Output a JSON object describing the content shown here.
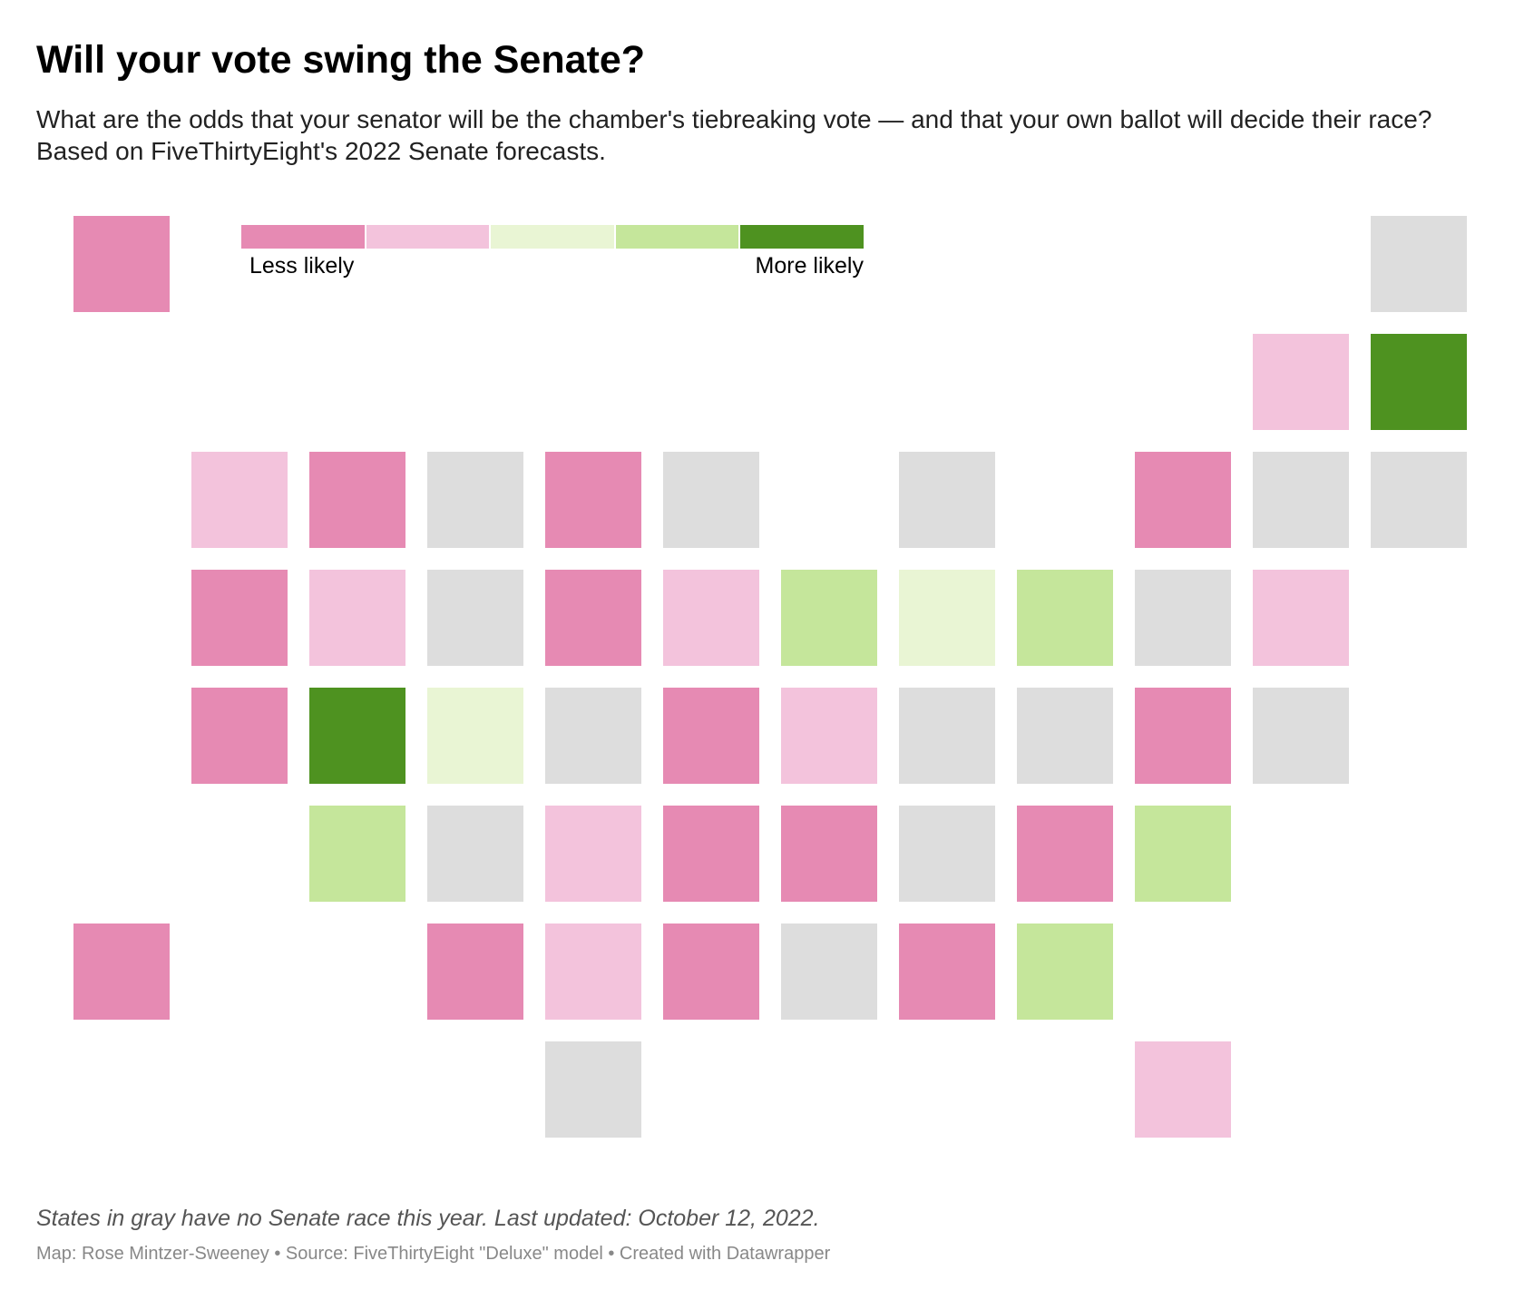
{
  "header": {
    "title": "Will your vote swing the Senate?",
    "subtitle": "What are the odds that your senator will be the chamber's tiebreaking vote — and that your own ballot will decide their race? Based on FiveThirtyEight's 2022 Senate forecasts."
  },
  "legend": {
    "left_label": "Less likely",
    "right_label": "More likely",
    "levels": [
      1,
      2,
      3,
      4,
      5
    ]
  },
  "colors": {
    "level_1": "#e68ab3",
    "level_2": "#f3c3dc",
    "level_3": "#e9f5d4",
    "level_4": "#c5e69b",
    "level_5": "#4e9220",
    "no_race": "#dddddd"
  },
  "tiles": [
    {
      "row": 0,
      "col": 0,
      "level": 1
    },
    {
      "row": 0,
      "col": 11,
      "level": 0
    },
    {
      "row": 1,
      "col": 10,
      "level": 2
    },
    {
      "row": 1,
      "col": 11,
      "level": 5
    },
    {
      "row": 2,
      "col": 1,
      "level": 2
    },
    {
      "row": 2,
      "col": 2,
      "level": 1
    },
    {
      "row": 2,
      "col": 3,
      "level": 0
    },
    {
      "row": 2,
      "col": 4,
      "level": 1
    },
    {
      "row": 2,
      "col": 5,
      "level": 0
    },
    {
      "row": 2,
      "col": 7,
      "level": 0
    },
    {
      "row": 2,
      "col": 9,
      "level": 1
    },
    {
      "row": 2,
      "col": 10,
      "level": 0
    },
    {
      "row": 2,
      "col": 11,
      "level": 0
    },
    {
      "row": 3,
      "col": 1,
      "level": 1
    },
    {
      "row": 3,
      "col": 2,
      "level": 2
    },
    {
      "row": 3,
      "col": 3,
      "level": 0
    },
    {
      "row": 3,
      "col": 4,
      "level": 1
    },
    {
      "row": 3,
      "col": 5,
      "level": 2
    },
    {
      "row": 3,
      "col": 6,
      "level": 4
    },
    {
      "row": 3,
      "col": 7,
      "level": 3
    },
    {
      "row": 3,
      "col": 8,
      "level": 4
    },
    {
      "row": 3,
      "col": 9,
      "level": 0
    },
    {
      "row": 3,
      "col": 10,
      "level": 2
    },
    {
      "row": 4,
      "col": 1,
      "level": 1
    },
    {
      "row": 4,
      "col": 2,
      "level": 5
    },
    {
      "row": 4,
      "col": 3,
      "level": 3
    },
    {
      "row": 4,
      "col": 4,
      "level": 0
    },
    {
      "row": 4,
      "col": 5,
      "level": 1
    },
    {
      "row": 4,
      "col": 6,
      "level": 2
    },
    {
      "row": 4,
      "col": 7,
      "level": 0
    },
    {
      "row": 4,
      "col": 8,
      "level": 0
    },
    {
      "row": 4,
      "col": 9,
      "level": 1
    },
    {
      "row": 4,
      "col": 10,
      "level": 0
    },
    {
      "row": 5,
      "col": 2,
      "level": 4
    },
    {
      "row": 5,
      "col": 3,
      "level": 0
    },
    {
      "row": 5,
      "col": 4,
      "level": 2
    },
    {
      "row": 5,
      "col": 5,
      "level": 1
    },
    {
      "row": 5,
      "col": 6,
      "level": 1
    },
    {
      "row": 5,
      "col": 7,
      "level": 0
    },
    {
      "row": 5,
      "col": 8,
      "level": 1
    },
    {
      "row": 5,
      "col": 9,
      "level": 4
    },
    {
      "row": 6,
      "col": 0,
      "level": 1
    },
    {
      "row": 6,
      "col": 3,
      "level": 1
    },
    {
      "row": 6,
      "col": 4,
      "level": 2
    },
    {
      "row": 6,
      "col": 5,
      "level": 1
    },
    {
      "row": 6,
      "col": 6,
      "level": 0
    },
    {
      "row": 6,
      "col": 7,
      "level": 1
    },
    {
      "row": 6,
      "col": 8,
      "level": 4
    },
    {
      "row": 7,
      "col": 4,
      "level": 0
    },
    {
      "row": 7,
      "col": 9,
      "level": 2
    }
  ],
  "notes": {
    "note": "States in gray have no Senate race this year. Last updated: October 12, 2022.",
    "credits": "Map: Rose Mintzer-Sweeney • Source: FiveThirtyEight \"Deluxe\" model • Created with Datawrapper"
  }
}
